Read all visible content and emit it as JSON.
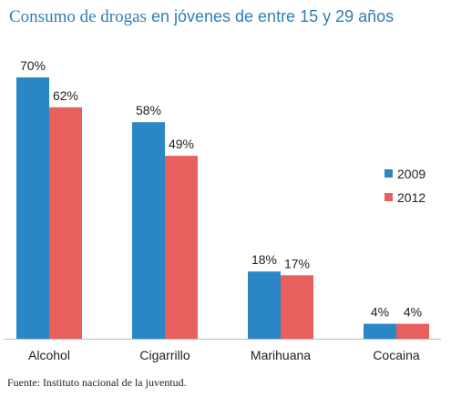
{
  "title": {
    "part1": "Consumo de drogas",
    "part2": "en jóvenes de entre 15 y 29 años"
  },
  "source": "Fuente: Instituto nacional de la juventud.",
  "colors": {
    "2009": "#2b86c6",
    "2012": "#e8605e"
  },
  "chart_data": {
    "type": "bar",
    "title": "Consumo de drogas en jóvenes de entre 15 y 29 años",
    "categories": [
      "Alcohol",
      "Cigarrillo",
      "Marihuana",
      "Cocaina"
    ],
    "series": [
      {
        "name": "2009",
        "values": [
          70,
          58,
          18,
          4
        ],
        "labels": [
          "70%",
          "58%",
          "18%",
          "4%"
        ]
      },
      {
        "name": "2012",
        "values": [
          62,
          49,
          17,
          4
        ],
        "labels": [
          "62%",
          "49%",
          "17%",
          "4%"
        ]
      }
    ],
    "unit": "%",
    "ylim": [
      0,
      70
    ],
    "grid": false,
    "legend": "right"
  }
}
